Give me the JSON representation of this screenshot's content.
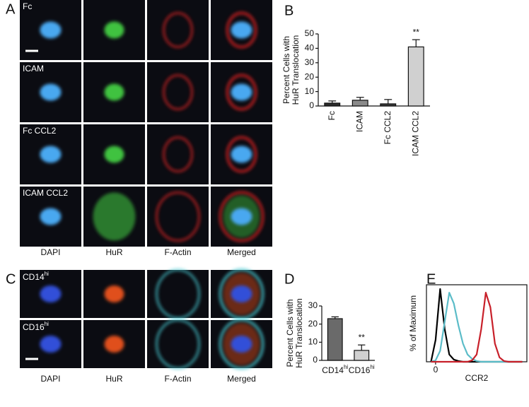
{
  "figure": {
    "panel_letters": [
      "A",
      "B",
      "C",
      "D",
      "E"
    ],
    "A": {
      "row_labels": [
        "Fc",
        "ICAM",
        "Fc CCL2",
        "ICAM CCL2"
      ],
      "column_labels": [
        "DAPI",
        "HuR",
        "F-Actin",
        "Merged"
      ]
    },
    "C": {
      "row_labels": [
        {
          "base": "CD14",
          "sup": "hi"
        },
        {
          "base": "CD16",
          "sup": "hi"
        }
      ],
      "column_labels": [
        "DAPI",
        "HuR",
        "F-Actin",
        "Merged"
      ]
    }
  },
  "chart_data": [
    {
      "type": "bar",
      "ylabel": [
        "Percent Cells with",
        "HuR Translocation"
      ],
      "categories": [
        "Fc",
        "ICAM",
        "Fc CCL2",
        "ICAM CCL2"
      ],
      "values": [
        2,
        4,
        1.5,
        41
      ],
      "errors": [
        1.5,
        2,
        3,
        5
      ],
      "colors": [
        "#2b2b2b",
        "#8a8a8a",
        "#3a3a3a",
        "#d0d0d0"
      ],
      "annotations": [
        {
          "category": 3,
          "text": "**"
        }
      ],
      "ylim": [
        0,
        50
      ],
      "yticks": [
        0,
        10,
        20,
        30,
        40,
        50
      ]
    },
    {
      "type": "bar",
      "ylabel": [
        "Percent Cells with",
        "HuR Translocation"
      ],
      "categories": [
        {
          "base": "CD14",
          "sup": "hi"
        },
        {
          "base": "CD16",
          "sup": "hi"
        }
      ],
      "values": [
        23,
        5.5
      ],
      "errors": [
        1,
        3
      ],
      "colors": [
        "#6a6a6a",
        "#d0d0d0"
      ],
      "annotations": [
        {
          "category": 1,
          "text": "**"
        }
      ],
      "ylim": [
        0,
        30
      ],
      "yticks": [
        0,
        10,
        20,
        30
      ]
    },
    {
      "type": "line",
      "ylabel": "% of Maximum",
      "xlabel": "CCR2",
      "x": [
        -5,
        0,
        5,
        10,
        15,
        20,
        25,
        30,
        35,
        40,
        45,
        50,
        55,
        60,
        65,
        70,
        75,
        80,
        85,
        90,
        95
      ],
      "series": [
        {
          "color": "#000000",
          "values": [
            0,
            30,
            100,
            45,
            10,
            3,
            1,
            0,
            0,
            0,
            0,
            0,
            0,
            0,
            0,
            0,
            0,
            0,
            0,
            0,
            0
          ]
        },
        {
          "color": "#5bbcc8",
          "values": [
            0,
            2,
            15,
            55,
            95,
            80,
            50,
            25,
            10,
            4,
            1,
            0,
            0,
            0,
            0,
            0,
            0,
            0,
            0,
            0,
            0
          ]
        },
        {
          "color": "#c8202a",
          "values": [
            0,
            0,
            0,
            0,
            0,
            0,
            0,
            0,
            0,
            2,
            10,
            45,
            95,
            75,
            25,
            6,
            1,
            0,
            0,
            0,
            0
          ]
        }
      ],
      "xlim": [
        -10,
        100
      ],
      "xticks": [
        0
      ],
      "ylim": [
        0,
        100
      ]
    }
  ]
}
